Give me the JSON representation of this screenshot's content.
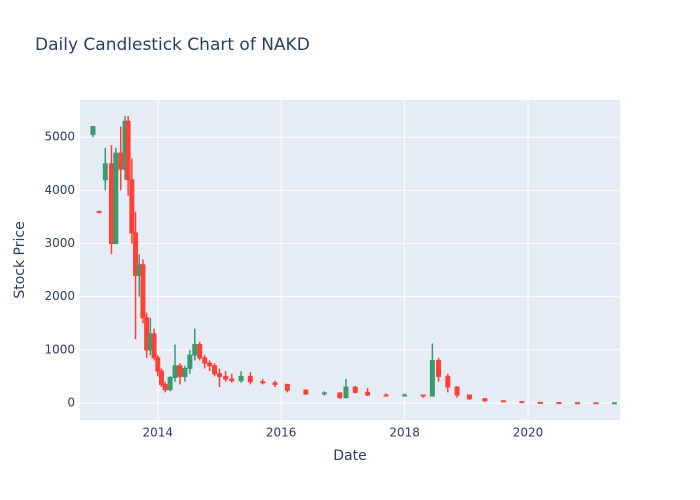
{
  "chart_data": {
    "type": "candlestick",
    "title": "Daily Candlestick Chart of NAKD",
    "x_label": "Date",
    "y_label": "Stock Price",
    "x": [
      2012.95,
      2013.05,
      2013.15,
      2013.25,
      2013.32,
      2013.4,
      2013.47,
      2013.52,
      2013.58,
      2013.64,
      2013.7,
      2013.76,
      2013.82,
      2013.88,
      2013.94,
      2014.0,
      2014.06,
      2014.12,
      2014.2,
      2014.28,
      2014.36,
      2014.44,
      2014.52,
      2014.6,
      2014.68,
      2014.76,
      2014.84,
      2014.92,
      2015.0,
      2015.1,
      2015.2,
      2015.35,
      2015.5,
      2015.7,
      2015.9,
      2016.1,
      2016.4,
      2016.7,
      2016.95,
      2017.05,
      2017.2,
      2017.4,
      2017.7,
      2018.0,
      2018.3,
      2018.45,
      2018.55,
      2018.7,
      2018.85,
      2019.05,
      2019.3,
      2019.6,
      2019.9,
      2020.2,
      2020.5,
      2020.8,
      2021.1,
      2021.4
    ],
    "open": [
      5050,
      3600,
      4200,
      4500,
      3000,
      4700,
      4400,
      5300,
      4200,
      3200,
      2400,
      2600,
      1600,
      1000,
      1300,
      850,
      600,
      350,
      250,
      480,
      700,
      500,
      650,
      900,
      1100,
      850,
      750,
      700,
      550,
      500,
      450,
      420,
      500,
      400,
      380,
      350,
      240,
      170,
      190,
      100,
      300,
      200,
      150,
      140,
      150,
      130,
      800,
      500,
      300,
      150,
      80,
      40,
      25,
      12,
      8,
      6,
      5,
      4
    ],
    "high": [
      5200,
      3620,
      4800,
      4850,
      4800,
      5200,
      5400,
      5400,
      4600,
      3600,
      2800,
      2700,
      1700,
      1600,
      1400,
      900,
      650,
      400,
      500,
      1100,
      750,
      700,
      1000,
      1400,
      1150,
      900,
      800,
      750,
      650,
      600,
      550,
      600,
      580,
      450,
      420,
      360,
      260,
      220,
      200,
      450,
      320,
      280,
      180,
      180,
      160,
      1120,
      850,
      550,
      320,
      160,
      90,
      50,
      30,
      15,
      12,
      8,
      7,
      6
    ],
    "low": [
      5000,
      3580,
      4000,
      2800,
      3000,
      4000,
      4200,
      3900,
      3000,
      1200,
      2000,
      1500,
      850,
      900,
      800,
      500,
      300,
      200,
      220,
      400,
      350,
      400,
      550,
      800,
      800,
      650,
      600,
      500,
      300,
      400,
      380,
      380,
      350,
      350,
      300,
      200,
      150,
      140,
      80,
      90,
      180,
      130,
      120,
      120,
      100,
      120,
      400,
      200,
      100,
      60,
      30,
      20,
      10,
      5,
      4,
      3,
      3,
      3
    ],
    "close": [
      5200,
      3590,
      4500,
      3000,
      4700,
      4400,
      5300,
      4200,
      3200,
      2400,
      2600,
      1600,
      1000,
      1300,
      850,
      600,
      350,
      250,
      480,
      700,
      500,
      650,
      900,
      1100,
      850,
      750,
      700,
      550,
      500,
      450,
      420,
      500,
      400,
      380,
      350,
      240,
      170,
      190,
      100,
      300,
      200,
      150,
      140,
      150,
      130,
      800,
      500,
      300,
      150,
      80,
      40,
      25,
      12,
      8,
      6,
      5,
      4,
      4
    ],
    "increasing_color": "#3D9970",
    "decreasing_color": "#FF4136",
    "xlim": [
      2012.74,
      2021.49
    ],
    "xticks": [
      2014,
      2016,
      2018,
      2020
    ],
    "ylim": [
      -320,
      5700
    ],
    "yticks": [
      0,
      1000,
      2000,
      3000,
      4000,
      5000
    ],
    "grid": true
  }
}
